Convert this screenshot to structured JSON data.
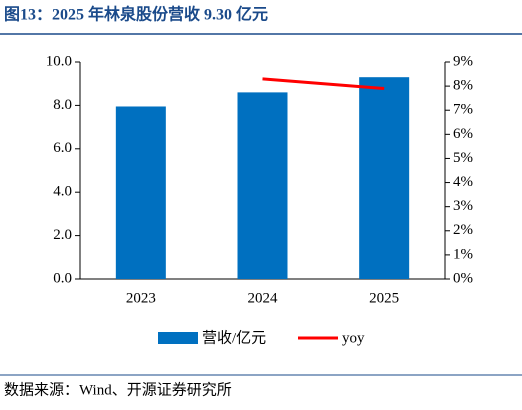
{
  "chart_data": {
    "type": "bar",
    "title": "图13：2025 年林泉股份营收 9.30 亿元",
    "categories": [
      "2023",
      "2024",
      "2025"
    ],
    "series": [
      {
        "name": "营收/亿元",
        "type": "bar",
        "color": "#0070c0",
        "values": [
          7.95,
          8.6,
          9.3
        ]
      },
      {
        "name": "yoy",
        "type": "line",
        "axis": "y2",
        "color": "#ff0000",
        "values": [
          null,
          8.3,
          7.9
        ]
      }
    ],
    "ylim": [
      0,
      10
    ],
    "yticks": [
      {
        "value": 0,
        "label": "0.0"
      },
      {
        "value": 2,
        "label": "2.0"
      },
      {
        "value": 4,
        "label": "4.0"
      },
      {
        "value": 6,
        "label": "6.0"
      },
      {
        "value": 8,
        "label": "8.0"
      },
      {
        "value": 10,
        "label": "10.0"
      }
    ],
    "y2lim": [
      0,
      9
    ],
    "y2ticks": [
      {
        "value": 0,
        "label": "0%"
      },
      {
        "value": 1,
        "label": "1%"
      },
      {
        "value": 2,
        "label": "2%"
      },
      {
        "value": 3,
        "label": "3%"
      },
      {
        "value": 4,
        "label": "4%"
      },
      {
        "value": 5,
        "label": "5%"
      },
      {
        "value": 6,
        "label": "6%"
      },
      {
        "value": 7,
        "label": "7%"
      },
      {
        "value": 8,
        "label": "8%"
      },
      {
        "value": 9,
        "label": "9%"
      }
    ],
    "source": "数据来源：Wind、开源证券研究所"
  }
}
